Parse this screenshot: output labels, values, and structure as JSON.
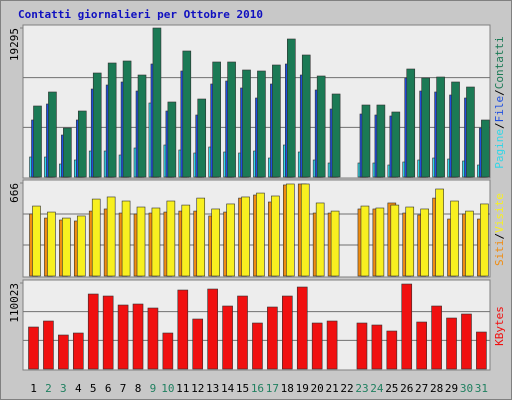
{
  "chart_data": [
    {
      "type": "bar",
      "title": "Contatti giornalieri per Ottobre 2010",
      "legend_separator": "/",
      "ylim": [
        0,
        19295
      ],
      "yticks": [
        19295
      ],
      "series": [
        {
          "name": "Pagine",
          "color": "#33d6e6",
          "values": [
            2590,
            2590,
            1684,
            2202,
            3367,
            3367,
            2849,
            3756,
            9583,
            4144,
            3497,
            3108,
            3885,
            3238,
            3108,
            3367,
            2461,
            4144,
            3238,
            2202,
            1813,
            null,
            1813,
            1813,
            1554,
            1943,
            2202,
            2461,
            2331,
            2072,
            1554
          ]
        },
        {
          "name": "File",
          "color": "#1f4fe0",
          "values": [
            7382,
            9454,
            5439,
            7382,
            11396,
            11914,
            12303,
            11137,
            14634,
            8547,
            13727,
            8029,
            12044,
            12432,
            11526,
            10231,
            12044,
            14634,
            13209,
            11267,
            8806,
            null,
            8159,
            8029,
            7900,
            12821,
            11137,
            11008,
            10619,
            10231,
            6346
          ]
        },
        {
          "name": "Contatti",
          "color": "#1b7a55",
          "values": [
            9195,
            11008,
            6346,
            8547,
            13468,
            14763,
            15022,
            13209,
            19295,
            9713,
            16317,
            10101,
            14893,
            14893,
            13857,
            13727,
            14504,
            17871,
            15799,
            13080,
            10749,
            null,
            9324,
            9324,
            8418,
            13986,
            12821,
            12950,
            12303,
            11655,
            7382
          ]
        }
      ]
    },
    {
      "type": "bar",
      "legend_separator": "/",
      "ylim": [
        0,
        666
      ],
      "yticks": [
        666
      ],
      "series": [
        {
          "name": "Siti",
          "color": "#f08c10",
          "values": [
            444,
            415,
            401,
            394,
            465,
            480,
            451,
            444,
            451,
            458,
            465,
            465,
            430,
            458,
            558,
            580,
            530,
            652,
            659,
            451,
            451,
            null,
            480,
            480,
            523,
            451,
            437,
            558,
            408,
            444,
            408
          ]
        },
        {
          "name": "Visite",
          "color": "#f8f020",
          "values": [
            501,
            458,
            415,
            430,
            551,
            566,
            537,
            494,
            487,
            537,
            508,
            558,
            480,
            516,
            566,
            594,
            573,
            659,
            659,
            523,
            465,
            null,
            501,
            487,
            508,
            494,
            480,
            623,
            537,
            465,
            516
          ]
        }
      ]
    },
    {
      "type": "bar",
      "ylim": [
        0,
        110023
      ],
      "yticks": [
        110023
      ],
      "categories": [
        "1",
        "2",
        "3",
        "4",
        "5",
        "6",
        "7",
        "8",
        "9",
        "10",
        "11",
        "12",
        "13",
        "14",
        "15",
        "16",
        "17",
        "18",
        "19",
        "20",
        "21",
        "22",
        "23",
        "24",
        "25",
        "26",
        "27",
        "28",
        "29",
        "30",
        "31"
      ],
      "category_colors": [
        "#000000",
        "#208060",
        "#208060",
        "#000000",
        "#000000",
        "#000000",
        "#000000",
        "#000000",
        "#208060",
        "#208060",
        "#000000",
        "#000000",
        "#000000",
        "#000000",
        "#000000",
        "#208060",
        "#208060",
        "#000000",
        "#000000",
        "#000000",
        "#000000",
        "#000000",
        "#208060",
        "#208060",
        "#000000",
        "#000000",
        "#000000",
        "#000000",
        "#000000",
        "#208060",
        "#208060"
      ],
      "series": [
        {
          "name": "KBytes",
          "color": "#f01010",
          "values": [
            53718,
            61392,
            43486,
            46044,
            95925,
            93367,
            81856,
            83135,
            78019,
            46044,
            101041,
            63950,
            102320,
            80577,
            93367,
            58834,
            79298,
            93367,
            104878,
            58834,
            61392,
            null,
            58834,
            56276,
            48602,
            108715,
            60113,
            80577,
            65229,
            70345,
            47323
          ]
        }
      ]
    }
  ]
}
